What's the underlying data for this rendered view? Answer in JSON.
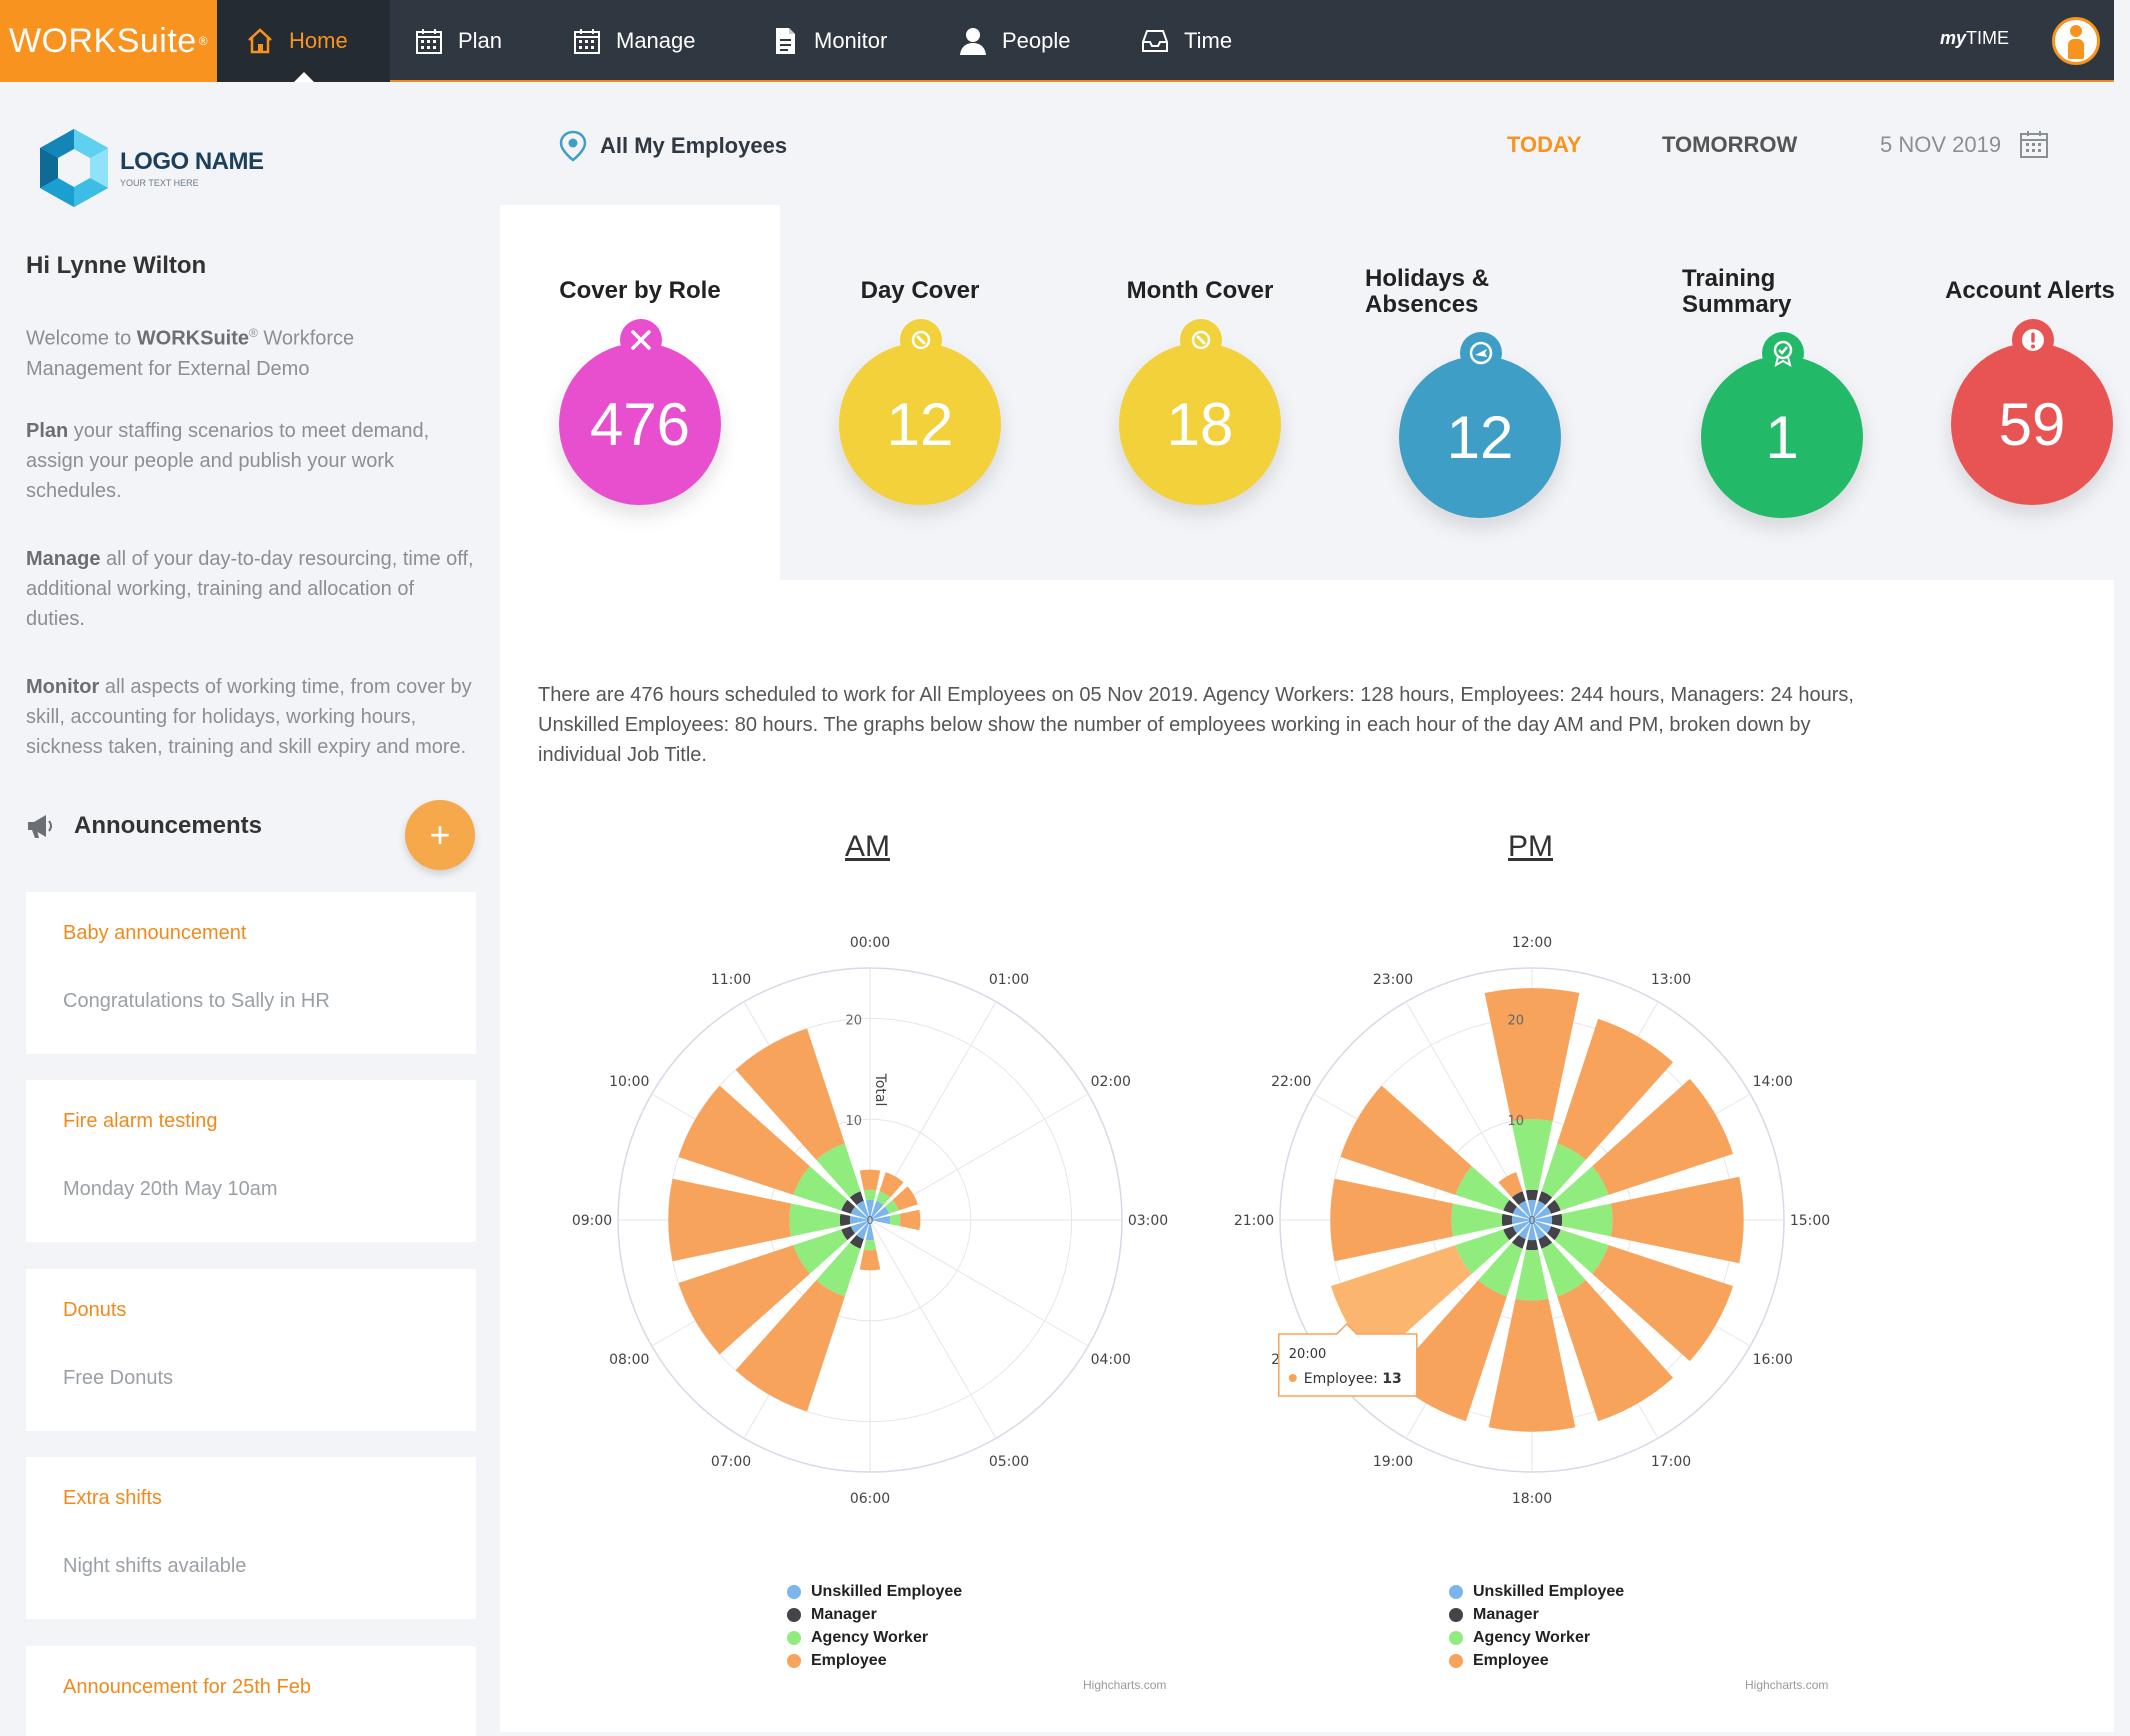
{
  "app": {
    "brand": "WORKSuite",
    "brand_mark": "®",
    "nav": [
      {
        "label": "Home",
        "icon": "home-icon",
        "active": true
      },
      {
        "label": "Plan",
        "icon": "calendar-icon"
      },
      {
        "label": "Manage",
        "icon": "calendar-icon"
      },
      {
        "label": "Monitor",
        "icon": "document-icon"
      },
      {
        "label": "People",
        "icon": "person-icon"
      },
      {
        "label": "Time",
        "icon": "inbox-icon"
      }
    ],
    "mytime_prefix": "my",
    "mytime_suffix": "TIME"
  },
  "sidebar": {
    "logo_name": "LOGO NAME",
    "logo_tagline": "YOUR TEXT HERE",
    "greeting": "Hi Lynne Wilton",
    "welcome_pre": "Welcome to ",
    "welcome_brand": "WORKSuite",
    "welcome_mark": "®",
    "welcome_post": " Workforce Management for External Demo",
    "plan_bold": "Plan",
    "plan_text": " your staffing scenarios to meet demand, assign your people and publish your work schedules.",
    "manage_bold": "Manage",
    "manage_text": " all of your day-to-day resourcing, time off, additional working, training and allocation of duties.",
    "monitor_bold": "Monitor",
    "monitor_text": " all aspects of working time, from cover by skill, accounting for holidays, working hours, sickness taken, training and skill expiry and more.",
    "announcements_title": "Announcements",
    "add_label": "+",
    "announcements": [
      {
        "title": "Baby announcement",
        "body": "Congratulations to Sally in HR"
      },
      {
        "title": "Fire alarm testing",
        "body": "Monday 20th May 10am"
      },
      {
        "title": "Donuts",
        "body": "Free Donuts"
      },
      {
        "title": "Extra shifts",
        "body": "Night shifts available"
      },
      {
        "title": "Announcement for 25th Feb",
        "body": ""
      }
    ]
  },
  "header": {
    "filter": "All My Employees",
    "today": "TODAY",
    "tomorrow": "TOMORROW",
    "date": "5 NOV 2019"
  },
  "kpis": [
    {
      "title": "Cover by Role",
      "value": "476",
      "color": "#e84fcf",
      "icon": "tools-icon"
    },
    {
      "title": "Day Cover",
      "value": "12",
      "color": "#f2d13a",
      "icon": "wrench-icon"
    },
    {
      "title": "Month Cover",
      "value": "18",
      "color": "#f2d13a",
      "icon": "wrench-icon"
    },
    {
      "title": "Holidays & Absences",
      "value": "12",
      "color": "#3e9ec6",
      "icon": "plane-icon"
    },
    {
      "title": "Training Summary",
      "value": "1",
      "color": "#22b969",
      "icon": "award-icon"
    },
    {
      "title": "Account Alerts",
      "value": "59",
      "color": "#e85454",
      "icon": "alert-icon"
    }
  ],
  "description": "There are 476 hours scheduled to work for All Employees on 05 Nov 2019. Agency Workers: 128 hours, Employees: 244 hours, Managers: 24 hours, Unskilled Employees: 80 hours. The graphs below show the number of employees working in each hour of the day AM and PM, broken down by individual Job Title.",
  "colors": {
    "unskilled": "#7cb5ec",
    "manager": "#434348",
    "agency": "#90ed7d",
    "employee": "#f7a35c",
    "accent": "#f7931e"
  },
  "chart_data": [
    {
      "type": "polar-stacked-column",
      "title": "AM",
      "axis_title": "Total",
      "ylim": [
        0,
        25
      ],
      "y_ticks": [
        "0",
        "10",
        "20"
      ],
      "categories": [
        "00:00",
        "01:00",
        "02:00",
        "03:00",
        "04:00",
        "05:00",
        "06:00",
        "07:00",
        "08:00",
        "09:00",
        "10:00",
        "11:00"
      ],
      "series": [
        {
          "name": "Unskilled Employee",
          "values": [
            2,
            2,
            2,
            2,
            0,
            0,
            2,
            2,
            2,
            2,
            2,
            2
          ]
        },
        {
          "name": "Manager",
          "values": [
            0,
            0,
            0,
            0,
            0,
            0,
            0,
            1,
            1,
            1,
            1,
            1
          ]
        },
        {
          "name": "Agency Worker",
          "values": [
            1,
            1,
            1,
            1,
            0,
            0,
            1,
            5,
            5,
            5,
            5,
            5
          ]
        },
        {
          "name": "Employee",
          "values": [
            2,
            2,
            2,
            2,
            0,
            0,
            2,
            12,
            12,
            12,
            12,
            12
          ]
        }
      ],
      "credits": "Highcharts.com"
    },
    {
      "type": "polar-stacked-column",
      "title": "PM",
      "ylim": [
        0,
        25
      ],
      "y_ticks": [
        "0",
        "10",
        "20"
      ],
      "categories": [
        "12:00",
        "13:00",
        "14:00",
        "15:00",
        "16:00",
        "17:00",
        "18:00",
        "19:00",
        "20:00",
        "21:00",
        "22:00",
        "23:00"
      ],
      "series": [
        {
          "name": "Unskilled Employee",
          "values": [
            2,
            2,
            2,
            2,
            2,
            2,
            2,
            2,
            2,
            2,
            2,
            2
          ]
        },
        {
          "name": "Manager",
          "values": [
            1,
            1,
            1,
            1,
            1,
            1,
            1,
            1,
            1,
            1,
            1,
            1
          ]
        },
        {
          "name": "Agency Worker",
          "values": [
            7,
            5,
            5,
            5,
            5,
            5,
            5,
            5,
            5,
            5,
            5,
            0
          ]
        },
        {
          "name": "Employee",
          "values": [
            13,
            13,
            13,
            13,
            13,
            13,
            13,
            13,
            13,
            12,
            12,
            2
          ]
        }
      ],
      "tooltip": {
        "category": "20:00",
        "series": "Employee",
        "value": 13
      },
      "credits": "Highcharts.com"
    }
  ]
}
